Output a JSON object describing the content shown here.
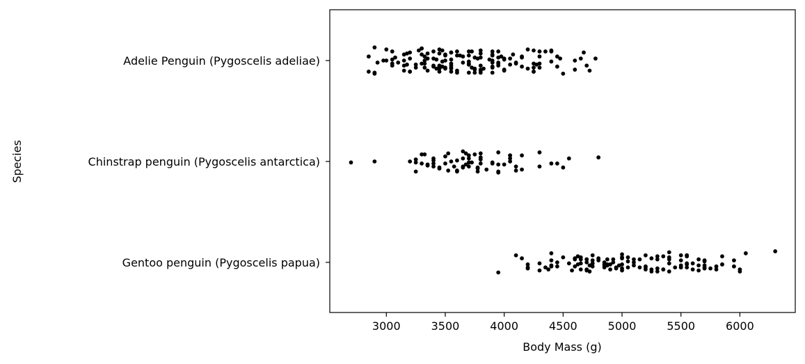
{
  "chart_data": {
    "type": "scatter",
    "title": "",
    "xlabel": "Body Mass (g)",
    "ylabel": "Species",
    "xlim": [
      2520,
      6470
    ],
    "xticks": [
      3000,
      3500,
      4000,
      4500,
      5000,
      5500,
      6000
    ],
    "grid": false,
    "categories": [
      "Adelie Penguin (Pygoscelis adeliae)",
      "Chinstrap penguin (Pygoscelis antarctica)",
      "Gentoo penguin (Pygoscelis papua)"
    ],
    "series": [
      {
        "category": "Adelie Penguin (Pygoscelis adeliae)",
        "values": [
          3750,
          3800,
          3250,
          3450,
          3650,
          3625,
          4675,
          3475,
          4250,
          3300,
          3700,
          3200,
          3800,
          4400,
          3700,
          3450,
          4500,
          3325,
          4200,
          3400,
          3600,
          3800,
          3950,
          3800,
          3800,
          3550,
          3200,
          3150,
          3950,
          3250,
          3900,
          3300,
          3900,
          3325,
          4150,
          3950,
          3550,
          3300,
          4650,
          3150,
          3900,
          3100,
          4400,
          3000,
          4600,
          3425,
          2975,
          3450,
          4150,
          3500,
          4300,
          3450,
          4050,
          2900,
          3700,
          3550,
          3800,
          2850,
          3750,
          3150,
          4400,
          3600,
          4050,
          2850,
          3950,
          3350,
          4100,
          3050,
          4450,
          3600,
          3900,
          3550,
          4150,
          3700,
          4250,
          3700,
          3900,
          3550,
          4000,
          3200,
          4700,
          3800,
          4200,
          3350,
          3550,
          3800,
          3500,
          3950,
          3600,
          3550,
          4300,
          3400,
          4450,
          3300,
          4300,
          3700,
          4350,
          2900,
          4100,
          3725,
          4725,
          3075,
          4250,
          2925,
          3550,
          3750,
          3900,
          3175,
          4775,
          3825,
          4600,
          3200,
          4275,
          3900,
          4075,
          2900,
          3775,
          3350,
          3325,
          3150,
          3500,
          3450,
          3875,
          3050,
          4000,
          3275,
          4300,
          3050,
          4000,
          3325,
          3500,
          3500,
          4475,
          3425,
          3900,
          3175,
          3975,
          3400,
          4250,
          3400,
          3475,
          3050,
          3725,
          3000,
          3650,
          4250,
          3475,
          3450,
          3750,
          3700,
          4000
        ],
        "offsets": [
          0.09,
          -0.03,
          0.07,
          -0.11,
          0.02,
          -0.05,
          -0.08,
          0.06,
          0.11,
          -0.12,
          0.04,
          -0.02,
          0.1,
          -0.09,
          0.01,
          0.08,
          0.13,
          -0.04,
          -0.11,
          0.05,
          0.12,
          -0.07,
          0.03,
          -0.1,
          0.09,
          -0.01,
          0.11,
          -0.06,
          -0.09,
          0.04,
          0.07,
          -0.12,
          0.12,
          0.0,
          0.06,
          -0.03,
          -0.08,
          0.03,
          -0.02,
          0.1,
          -0.05,
          0.02,
          0.01,
          -0.11,
          0.09,
          -0.01,
          0.0,
          0.06,
          -0.04,
          0.08,
          -0.09,
          0.11,
          0.04,
          -0.13,
          -0.05,
          0.05,
          0.12,
          -0.04,
          0.08,
          0.0,
          -0.1,
          0.1,
          -0.02,
          0.11,
          0.05,
          -0.07,
          0.02,
          -0.01,
          -0.04,
          -0.09,
          0.0,
          0.11,
          -0.03,
          0.04,
          0.03,
          -0.09,
          -0.06,
          0.07,
          0.09,
          -0.08,
          0.05,
          0.05,
          0.08,
          -0.02,
          0.03,
          0.1,
          0.07,
          0.02,
          -0.05,
          0.08,
          -0.04,
          -0.02,
          0.06,
          -0.06,
          0.07,
          0.12,
          -0.09,
          0.13,
          0.03,
          0.07,
          0.1,
          -0.03,
          0.07,
          0.02,
          -0.08,
          0.12,
          0.02,
          0.04,
          -0.02,
          0.08,
          0.0,
          0.11,
          0.04,
          0.06,
          -0.06,
          0.12,
          -0.02,
          0.1,
          0.03,
          0.05,
          -0.06,
          -0.07,
          -0.01,
          -0.09,
          0.1,
          -0.1,
          0.03,
          0.05,
          -0.02,
          0.07,
          0.0,
          -0.05,
          -0.02,
          0.08,
          -0.09,
          -0.07,
          -0.04,
          -0.09,
          -0.1,
          0.06,
          0.01,
          0.03,
          -0.09,
          0.0,
          -0.04,
          0.11,
          -0.1,
          0.05,
          -0.03,
          0.03,
          -0.01
        ]
      },
      {
        "category": "Chinstrap penguin (Pygoscelis antarctica)",
        "values": [
          3500,
          3900,
          3650,
          3525,
          3725,
          3950,
          3250,
          3750,
          4150,
          3700,
          3800,
          3775,
          3700,
          4050,
          3575,
          4050,
          3300,
          3700,
          3450,
          4400,
          3600,
          3400,
          2900,
          3800,
          3300,
          4150,
          3400,
          3800,
          3700,
          4550,
          3200,
          4300,
          3350,
          4100,
          3600,
          3900,
          3850,
          4800,
          2700,
          4500,
          3950,
          3650,
          3550,
          3500,
          3675,
          4450,
          3400,
          4300,
          3250,
          3675,
          3325,
          3950,
          3600,
          4050,
          3350,
          3450,
          3250,
          4050,
          3800,
          3525,
          3950,
          3650,
          3650,
          4000,
          3400,
          3775,
          4100,
          3775
        ],
        "offsets": [
          -0.05,
          0.02,
          -0.03,
          0.09,
          0.01,
          0.11,
          0.1,
          -0.07,
          0.08,
          0.01,
          0.02,
          0.06,
          -0.06,
          0.0,
          0.05,
          -0.06,
          -0.07,
          -0.03,
          0.06,
          0.02,
          0.1,
          -0.01,
          0.0,
          -0.08,
          0.02,
          -0.06,
          -0.03,
          -0.02,
          0.05,
          -0.03,
          0.0,
          -0.09,
          0.04,
          0.05,
          0.09,
          0.01,
          0.08,
          -0.04,
          0.01,
          0.06,
          -0.09,
          0.06,
          0.0,
          0.02,
          -0.08,
          0.02,
          0.05,
          0.05,
          0.01,
          0.03,
          -0.07,
          0.1,
          -0.01,
          -0.06,
          0.03,
          0.07,
          -0.02,
          -0.03,
          -0.04,
          -0.08,
          0.03,
          0.05,
          -0.1,
          0.03,
          0.02,
          0.07,
          0.09,
          0.1
        ]
      },
      {
        "category": "Gentoo penguin (Pygoscelis papua)",
        "values": [
          4500,
          5700,
          4450,
          5700,
          5400,
          4550,
          4800,
          5200,
          4400,
          5150,
          4650,
          5550,
          4650,
          5850,
          4200,
          5850,
          4150,
          6300,
          4800,
          5350,
          5700,
          5000,
          4400,
          5050,
          5000,
          5100,
          4100,
          5650,
          4600,
          5550,
          5250,
          4700,
          5050,
          6050,
          5150,
          5400,
          4950,
          5250,
          4350,
          5350,
          3950,
          5700,
          4300,
          4750,
          5550,
          4900,
          4200,
          5400,
          5100,
          5300,
          4850,
          5300,
          4400,
          5000,
          4900,
          5050,
          4300,
          5000,
          4450,
          5550,
          4200,
          5300,
          4400,
          5650,
          4700,
          5700,
          4650,
          5800,
          4700,
          5550,
          4750,
          5000,
          5100,
          5200,
          4700,
          5800,
          4600,
          6000,
          4750,
          5950,
          4625,
          5450,
          4725,
          5350,
          4750,
          5600,
          4600,
          5300,
          4875,
          5550,
          4950,
          5400,
          4750,
          5650,
          4850,
          5200,
          4925,
          4875,
          4625,
          5250,
          4850,
          5600,
          4975,
          5500,
          4725,
          5500,
          4700,
          5500,
          4575,
          5500,
          5000,
          5950,
          4650,
          5500,
          4375,
          5850,
          4875,
          6000,
          4925,
          4850,
          5750,
          5200,
          5400
        ],
        "offsets": [
          -0.05,
          0.03,
          0.0,
          0.05,
          -0.1,
          0.01,
          -0.04,
          -0.07,
          -0.09,
          0.05,
          0.07,
          0.02,
          -0.03,
          -0.06,
          0.05,
          0.02,
          -0.04,
          -0.11,
          -0.02,
          0.07,
          -0.02,
          -0.08,
          0.04,
          -0.05,
          0.06,
          0.03,
          -0.07,
          0.08,
          -0.04,
          -0.06,
          0.07,
          -0.03,
          0.05,
          -0.09,
          -0.03,
          0.09,
          0.06,
          -0.04,
          0.05,
          -0.06,
          0.1,
          0.06,
          0.01,
          -0.07,
          0.05,
          0.02,
          0.02,
          -0.03,
          0.0,
          -0.06,
          0.03,
          0.06,
          -0.02,
          -0.04,
          0.07,
          -0.01,
          0.08,
          0.08,
          0.04,
          -0.07,
          0.06,
          -0.03,
          0.03,
          -0.03,
          0.08,
          -0.01,
          -0.05,
          0.04,
          -0.03,
          -0.07,
          -0.02,
          -0.05,
          -0.03,
          0.04,
          0.0,
          0.07,
          0.04,
          0.07,
          0.04,
          0.04,
          -0.06,
          0.05,
          0.03,
          0.07,
          0.01,
          0.01,
          -0.03,
          0.09,
          0.03,
          0.01,
          0.05,
          0.01,
          0.01,
          0.03,
          0.02,
          0.05,
          0.0,
          0.02,
          0.02,
          0.09,
          0.05,
          0.07,
          0.03,
          0.03,
          0.09,
          -0.07,
          0.07,
          -0.02,
          0.08,
          0.05,
          0.02,
          -0.02,
          0.01,
          0.05,
          0.07,
          0.02,
          -0.03,
          0.09,
          -0.03,
          0.0,
          0.06,
          0.07,
          -0.05
        ]
      }
    ]
  }
}
